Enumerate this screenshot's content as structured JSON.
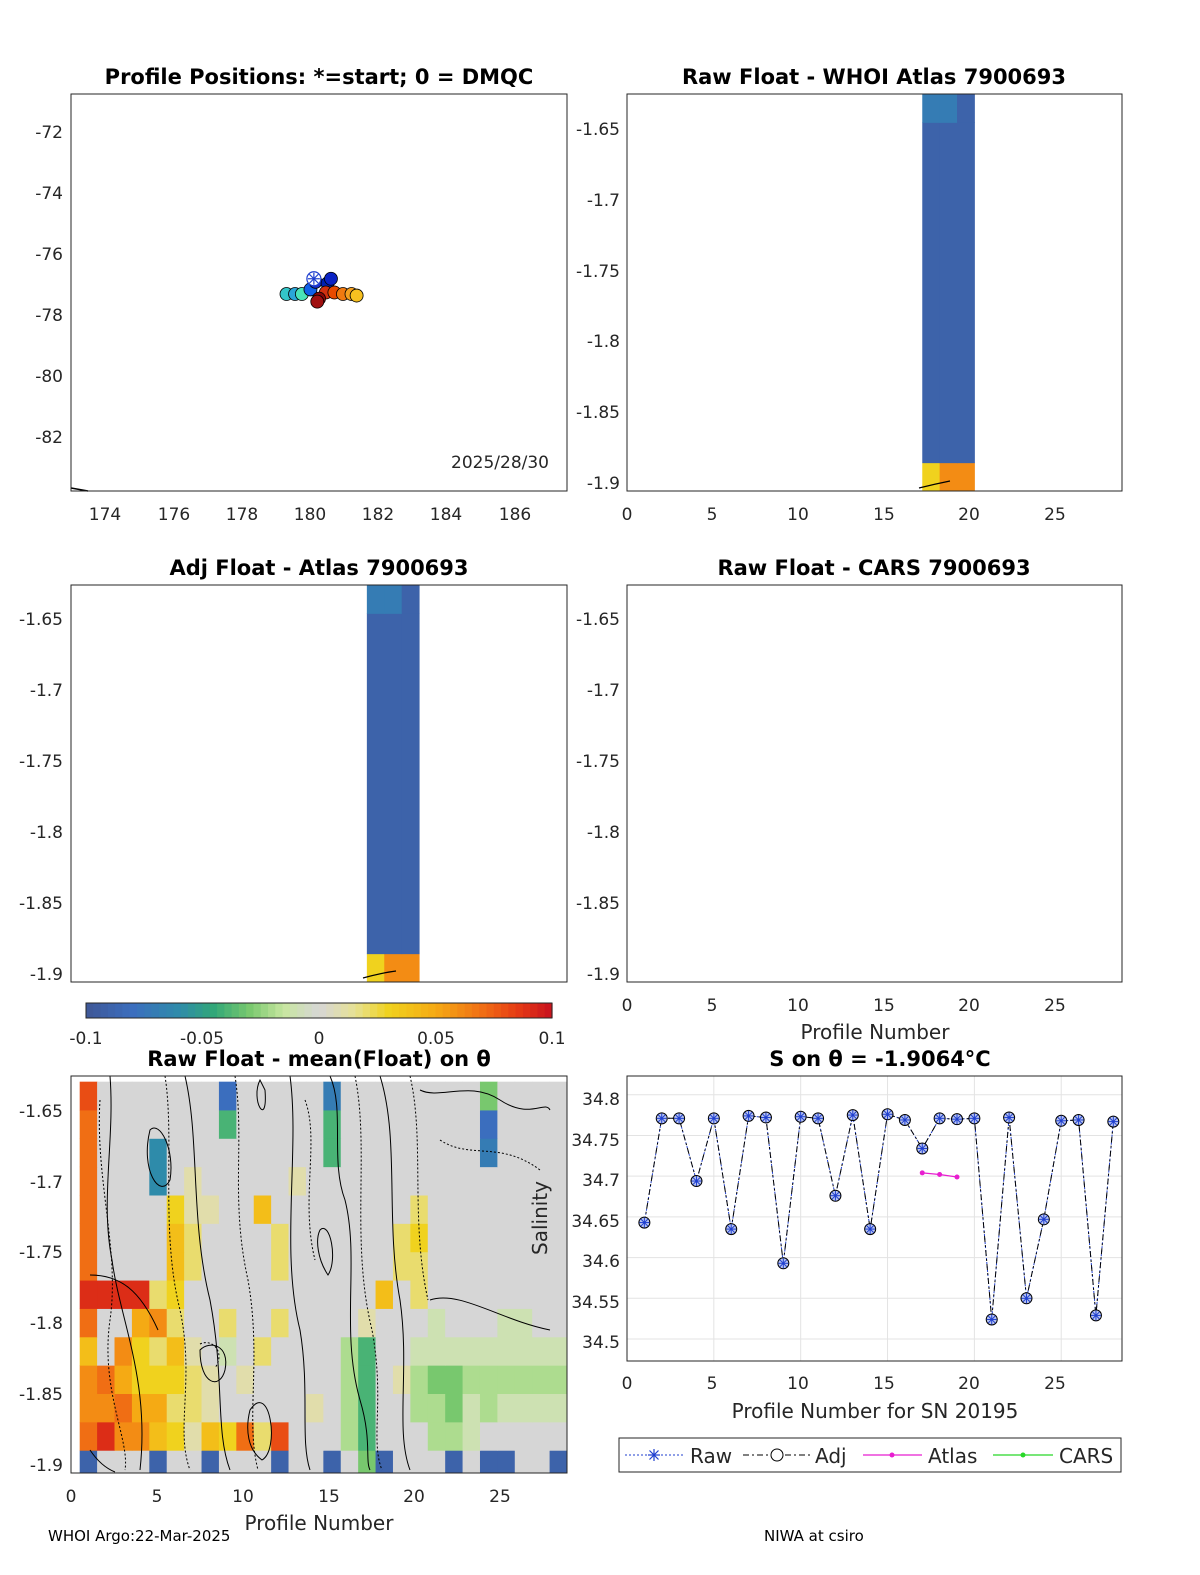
{
  "panels": {
    "positions": {
      "title": "Profile Positions: *=start; 0 = DMQC",
      "date_text": "2025/28/30",
      "xticks": [
        "174",
        "176",
        "178",
        "180",
        "182",
        "184",
        "186"
      ],
      "yticks": [
        "-72",
        "-74",
        "-76",
        "-78",
        "-80",
        "-82"
      ]
    },
    "whoi": {
      "title": "Raw Float - WHOI Atlas  7900693",
      "xticks": [
        "0",
        "5",
        "10",
        "15",
        "20",
        "25"
      ],
      "yticks": [
        "-1.65",
        "-1.7",
        "-1.75",
        "-1.8",
        "-1.85",
        "-1.9"
      ]
    },
    "adj": {
      "title": "Adj Float - Atlas  7900693",
      "yticks": [
        "-1.65",
        "-1.7",
        "-1.75",
        "-1.8",
        "-1.85",
        "-1.9"
      ]
    },
    "cars": {
      "title": "Raw Float - CARS  7900693",
      "xticks": [
        "0",
        "5",
        "10",
        "15",
        "20",
        "25"
      ],
      "yticks": [
        "-1.65",
        "-1.7",
        "-1.75",
        "-1.8",
        "-1.85",
        "-1.9"
      ],
      "xlabel": "Profile Number"
    },
    "colorbar": {
      "ticks": [
        "-0.1",
        "-0.05",
        "0",
        "0.05",
        "0.1"
      ]
    },
    "anomaly": {
      "title": "Raw Float - mean(Float) on θ",
      "xticks": [
        "0",
        "5",
        "10",
        "15",
        "20",
        "25"
      ],
      "yticks": [
        "-1.65",
        "-1.7",
        "-1.75",
        "-1.8",
        "-1.85",
        "-1.9"
      ],
      "xlabel": "Profile Number"
    },
    "salinity": {
      "title": "S on θ = -1.9064°C",
      "xticks": [
        "0",
        "5",
        "10",
        "15",
        "20",
        "25"
      ],
      "yticks": [
        "34.8",
        "34.75",
        "34.7",
        "34.65",
        "34.6",
        "34.55",
        "34.5"
      ],
      "xlabel": "Profile Number for SN 20195",
      "ylabel": "Salinity",
      "legend": [
        "Raw",
        "Adj",
        "Atlas",
        "CARS"
      ]
    }
  },
  "footer": {
    "left": "WHOI Argo:22-Mar-2025",
    "right": "NIWA at csiro"
  },
  "colors": {
    "raw": "#1f3fcf",
    "atlas": "#e81ed0",
    "cars": "#28d828",
    "deep_blue": "#3f5796"
  },
  "chart_data": [
    {
      "type": "scatter",
      "panel": "positions",
      "xlim": [
        173,
        187.5
      ],
      "ylim": [
        -83.8,
        -70.8
      ],
      "points": [
        {
          "lon": 179.3,
          "lat": -77.35,
          "color": "#33c5c8"
        },
        {
          "lon": 179.55,
          "lat": -77.35,
          "color": "#2aa6d8"
        },
        {
          "lon": 179.75,
          "lat": -77.35,
          "color": "#49e3b8"
        },
        {
          "lon": 180.0,
          "lat": -77.2,
          "color": "#1060e8"
        },
        {
          "lon": 180.15,
          "lat": -76.95,
          "color": "#1a30d0"
        },
        {
          "lon": 180.5,
          "lat": -77.0,
          "color": "#0020b0"
        },
        {
          "lon": 180.6,
          "lat": -76.85,
          "color": "#0a22c4"
        },
        {
          "lon": 180.45,
          "lat": -77.3,
          "color": "#d03010"
        },
        {
          "lon": 180.7,
          "lat": -77.3,
          "color": "#e84a00"
        },
        {
          "lon": 180.95,
          "lat": -77.35,
          "color": "#f07a10"
        },
        {
          "lon": 181.2,
          "lat": -77.35,
          "color": "#f4a020"
        },
        {
          "lon": 181.35,
          "lat": -77.4,
          "color": "#f7c020"
        },
        {
          "lon": 180.25,
          "lat": -77.5,
          "color": "#8a0808"
        },
        {
          "lon": 180.2,
          "lat": -77.6,
          "color": "#a01010"
        }
      ],
      "start": {
        "lon": 180.1,
        "lat": -76.85
      }
    },
    {
      "type": "line",
      "panel": "salinity",
      "xlim": [
        0,
        28.5
      ],
      "ylim": [
        34.473,
        34.823
      ],
      "series": [
        {
          "name": "Raw",
          "x": [
            1,
            2,
            3,
            4,
            5,
            6,
            7,
            8,
            9,
            10,
            11,
            12,
            13,
            14,
            15,
            16,
            17,
            18,
            19,
            20,
            21,
            22,
            23,
            24,
            25,
            26,
            27,
            28
          ],
          "values": [
            34.643,
            34.771,
            34.771,
            34.694,
            34.771,
            34.635,
            34.774,
            34.772,
            34.593,
            34.773,
            34.771,
            34.676,
            34.775,
            34.635,
            34.776,
            34.769,
            34.734,
            34.771,
            34.77,
            34.771,
            34.524,
            34.772,
            34.55,
            34.647,
            34.768,
            34.769,
            34.529,
            34.767
          ]
        },
        {
          "name": "Adj",
          "x": [
            1,
            2,
            3,
            4,
            5,
            6,
            7,
            8,
            9,
            10,
            11,
            12,
            13,
            14,
            15,
            16,
            17,
            18,
            19,
            20,
            21,
            22,
            23,
            24,
            25,
            26,
            27,
            28
          ],
          "values": [
            34.643,
            34.771,
            34.771,
            34.694,
            34.771,
            34.635,
            34.774,
            34.772,
            34.593,
            34.773,
            34.771,
            34.676,
            34.775,
            34.635,
            34.776,
            34.769,
            34.734,
            34.771,
            34.77,
            34.771,
            34.524,
            34.772,
            34.55,
            34.647,
            34.768,
            34.769,
            34.529,
            34.767
          ]
        },
        {
          "name": "Atlas",
          "x": [
            17,
            18,
            19
          ],
          "values": [
            34.704,
            34.702,
            34.699
          ]
        },
        {
          "name": "CARS",
          "x": [],
          "values": []
        }
      ]
    },
    {
      "type": "heatmap",
      "panel": "whoi",
      "xlim": [
        0,
        28.5
      ],
      "ylim": [
        -1.906,
        -1.626
      ],
      "columns": [
        {
          "x0": 17,
          "x1": 20,
          "cells": [
            {
              "y0": -1.906,
              "y1": -1.886,
              "values": [
                0.03,
                0.06,
                0.06
              ]
            },
            {
              "y0": -1.886,
              "y1": -1.646,
              "values": [
                -0.09,
                -0.09,
                -0.09
              ]
            },
            {
              "y0": -1.646,
              "y1": -1.626,
              "values": [
                -0.07,
                -0.07,
                -0.09
              ]
            }
          ]
        }
      ]
    },
    {
      "type": "heatmap",
      "panel": "adj",
      "xlim": [
        0,
        28.5
      ],
      "ylim": [
        -1.906,
        -1.626
      ],
      "columns": [
        {
          "x0": 17,
          "x1": 20,
          "cells": [
            {
              "y0": -1.906,
              "y1": -1.886,
              "values": [
                0.03,
                0.06,
                0.06
              ]
            },
            {
              "y0": -1.886,
              "y1": -1.646,
              "values": [
                -0.09,
                -0.09,
                -0.09
              ]
            },
            {
              "y0": -1.646,
              "y1": -1.626,
              "values": [
                -0.07,
                -0.07,
                -0.09
              ]
            }
          ]
        }
      ]
    },
    {
      "type": "heatmap",
      "panel": "anomaly",
      "xlim": [
        0,
        28.5
      ],
      "ylim": [
        -1.906,
        -1.626
      ],
      "clim": [
        -0.1,
        0.1
      ],
      "cols": [
        1,
        2,
        3,
        4,
        5,
        6,
        7,
        8,
        9,
        10,
        11,
        12,
        13,
        14,
        15,
        16,
        17,
        18,
        19,
        20,
        21,
        22,
        23,
        24,
        25,
        26,
        27,
        28
      ],
      "rows_y": [
        -1.9,
        -1.88,
        -1.86,
        -1.84,
        -1.82,
        -1.8,
        -1.78,
        -1.76,
        -1.74,
        -1.72,
        -1.7,
        -1.68,
        -1.66,
        -1.64
      ],
      "values": [
        [
          -0.09,
          0.0,
          0.0,
          0.0,
          -0.09,
          0.0,
          0.0,
          -0.09,
          0.0,
          0.0,
          0.0,
          -0.09,
          0.0,
          0.0,
          -0.09,
          0.0,
          -0.03,
          -0.09,
          0.0,
          0.0,
          0.0,
          -0.09,
          0.0,
          -0.09,
          -0.09,
          0.0,
          0.0,
          -0.09
        ],
        [
          0.07,
          0.09,
          0.06,
          0.06,
          0.04,
          0.03,
          0.01,
          0.04,
          0.03,
          0.07,
          0.02,
          0.08,
          0.0,
          0.0,
          0.0,
          -0.02,
          -0.04,
          0.0,
          0.0,
          0.0,
          -0.02,
          -0.02,
          -0.01,
          0.0,
          0.0,
          0.0,
          0.0,
          0.0
        ],
        [
          0.06,
          0.06,
          0.07,
          0.05,
          0.05,
          0.02,
          0.02,
          0.01,
          0.0,
          0.0,
          0.0,
          0.0,
          0.0,
          0.01,
          0.0,
          -0.02,
          -0.04,
          0.0,
          0.0,
          -0.02,
          -0.02,
          -0.03,
          -0.01,
          -0.02,
          -0.01,
          -0.01,
          -0.01,
          -0.01
        ],
        [
          0.06,
          0.07,
          0.05,
          0.03,
          0.03,
          0.03,
          0.02,
          0.01,
          0.0,
          0.01,
          0.0,
          0.0,
          0.0,
          0.0,
          0.0,
          -0.02,
          -0.04,
          0.0,
          0.01,
          -0.02,
          -0.03,
          -0.03,
          -0.02,
          -0.02,
          -0.02,
          -0.02,
          -0.02,
          -0.02
        ],
        [
          0.04,
          0.0,
          0.06,
          0.03,
          0.02,
          0.04,
          0.01,
          0.0,
          -0.01,
          0.0,
          0.02,
          0.0,
          0.0,
          0.0,
          0.0,
          -0.02,
          -0.04,
          0.0,
          0.0,
          -0.01,
          -0.01,
          -0.01,
          -0.01,
          -0.01,
          -0.01,
          -0.01,
          -0.01,
          -0.01
        ],
        [
          0.07,
          0.0,
          0.0,
          0.05,
          0.06,
          0.02,
          0.0,
          0.0,
          0.02,
          0.0,
          0.0,
          0.02,
          0.0,
          0.0,
          0.0,
          0.0,
          0.01,
          0.0,
          0.0,
          0.0,
          -0.01,
          0.0,
          0.0,
          0.0,
          -0.01,
          -0.01,
          0.0,
          0.0
        ],
        [
          0.09,
          0.09,
          0.09,
          0.09,
          0.02,
          0.03,
          0.0,
          0.0,
          0.0,
          0.0,
          0.0,
          0.0,
          0.0,
          0.0,
          0.0,
          0.0,
          0.0,
          0.04,
          0.0,
          0.02,
          0.0,
          0.0,
          0.0,
          0.0,
          0.0,
          0.0,
          0.0,
          0.0
        ],
        [
          0.07,
          0.0,
          0.0,
          0.0,
          0.0,
          0.04,
          0.02,
          0.0,
          0.0,
          0.0,
          0.0,
          0.02,
          0.0,
          0.0,
          0.0,
          0.0,
          0.0,
          0.0,
          0.02,
          0.02,
          0.0,
          0.0,
          0.0,
          0.0,
          0.0,
          0.0,
          0.0,
          0.0
        ],
        [
          0.07,
          0.0,
          0.0,
          0.0,
          0.0,
          0.04,
          0.02,
          0.0,
          0.0,
          0.0,
          0.0,
          0.02,
          0.0,
          0.0,
          0.0,
          0.0,
          0.0,
          0.0,
          0.02,
          0.03,
          0.0,
          0.0,
          0.0,
          0.0,
          0.0,
          0.0,
          0.0,
          0.0
        ],
        [
          0.07,
          0.0,
          0.0,
          0.0,
          0.0,
          0.03,
          0.01,
          0.01,
          0.0,
          0.0,
          0.04,
          0.0,
          0.0,
          0.0,
          0.0,
          0.0,
          0.0,
          0.0,
          0.0,
          0.02,
          0.0,
          0.0,
          0.0,
          0.0,
          0.0,
          0.0,
          0.0,
          0.0
        ],
        [
          0.07,
          0.0,
          0.0,
          0.0,
          -0.06,
          0.0,
          0.01,
          0.0,
          0.0,
          0.0,
          0.0,
          0.0,
          0.01,
          0.0,
          0.0,
          0.0,
          0.0,
          0.0,
          0.0,
          0.0,
          0.0,
          0.0,
          0.0,
          0.0,
          0.0,
          0.0,
          0.0,
          0.0
        ],
        [
          0.07,
          0.0,
          0.0,
          0.0,
          -0.06,
          0.0,
          0.0,
          0.0,
          0.0,
          0.0,
          0.0,
          0.0,
          0.0,
          0.0,
          -0.04,
          0.0,
          0.0,
          0.0,
          0.0,
          0.0,
          0.0,
          0.0,
          0.0,
          -0.07,
          0.0,
          0.0,
          0.0,
          0.0
        ],
        [
          0.07,
          0.0,
          0.0,
          0.0,
          0.0,
          0.0,
          0.0,
          0.0,
          -0.04,
          0.0,
          0.0,
          0.0,
          0.0,
          0.0,
          -0.04,
          0.0,
          0.0,
          0.0,
          0.0,
          0.0,
          0.0,
          0.0,
          0.0,
          -0.08,
          0.0,
          0.0,
          0.0,
          0.0
        ],
        [
          0.08,
          0.0,
          0.0,
          0.0,
          0.0,
          0.0,
          0.0,
          0.0,
          -0.08,
          0.0,
          0.0,
          0.0,
          0.0,
          0.0,
          -0.07,
          0.0,
          0.0,
          0.0,
          0.0,
          0.0,
          0.0,
          0.0,
          0.0,
          -0.03,
          0.0,
          0.0,
          0.0,
          0.0
        ]
      ]
    }
  ]
}
